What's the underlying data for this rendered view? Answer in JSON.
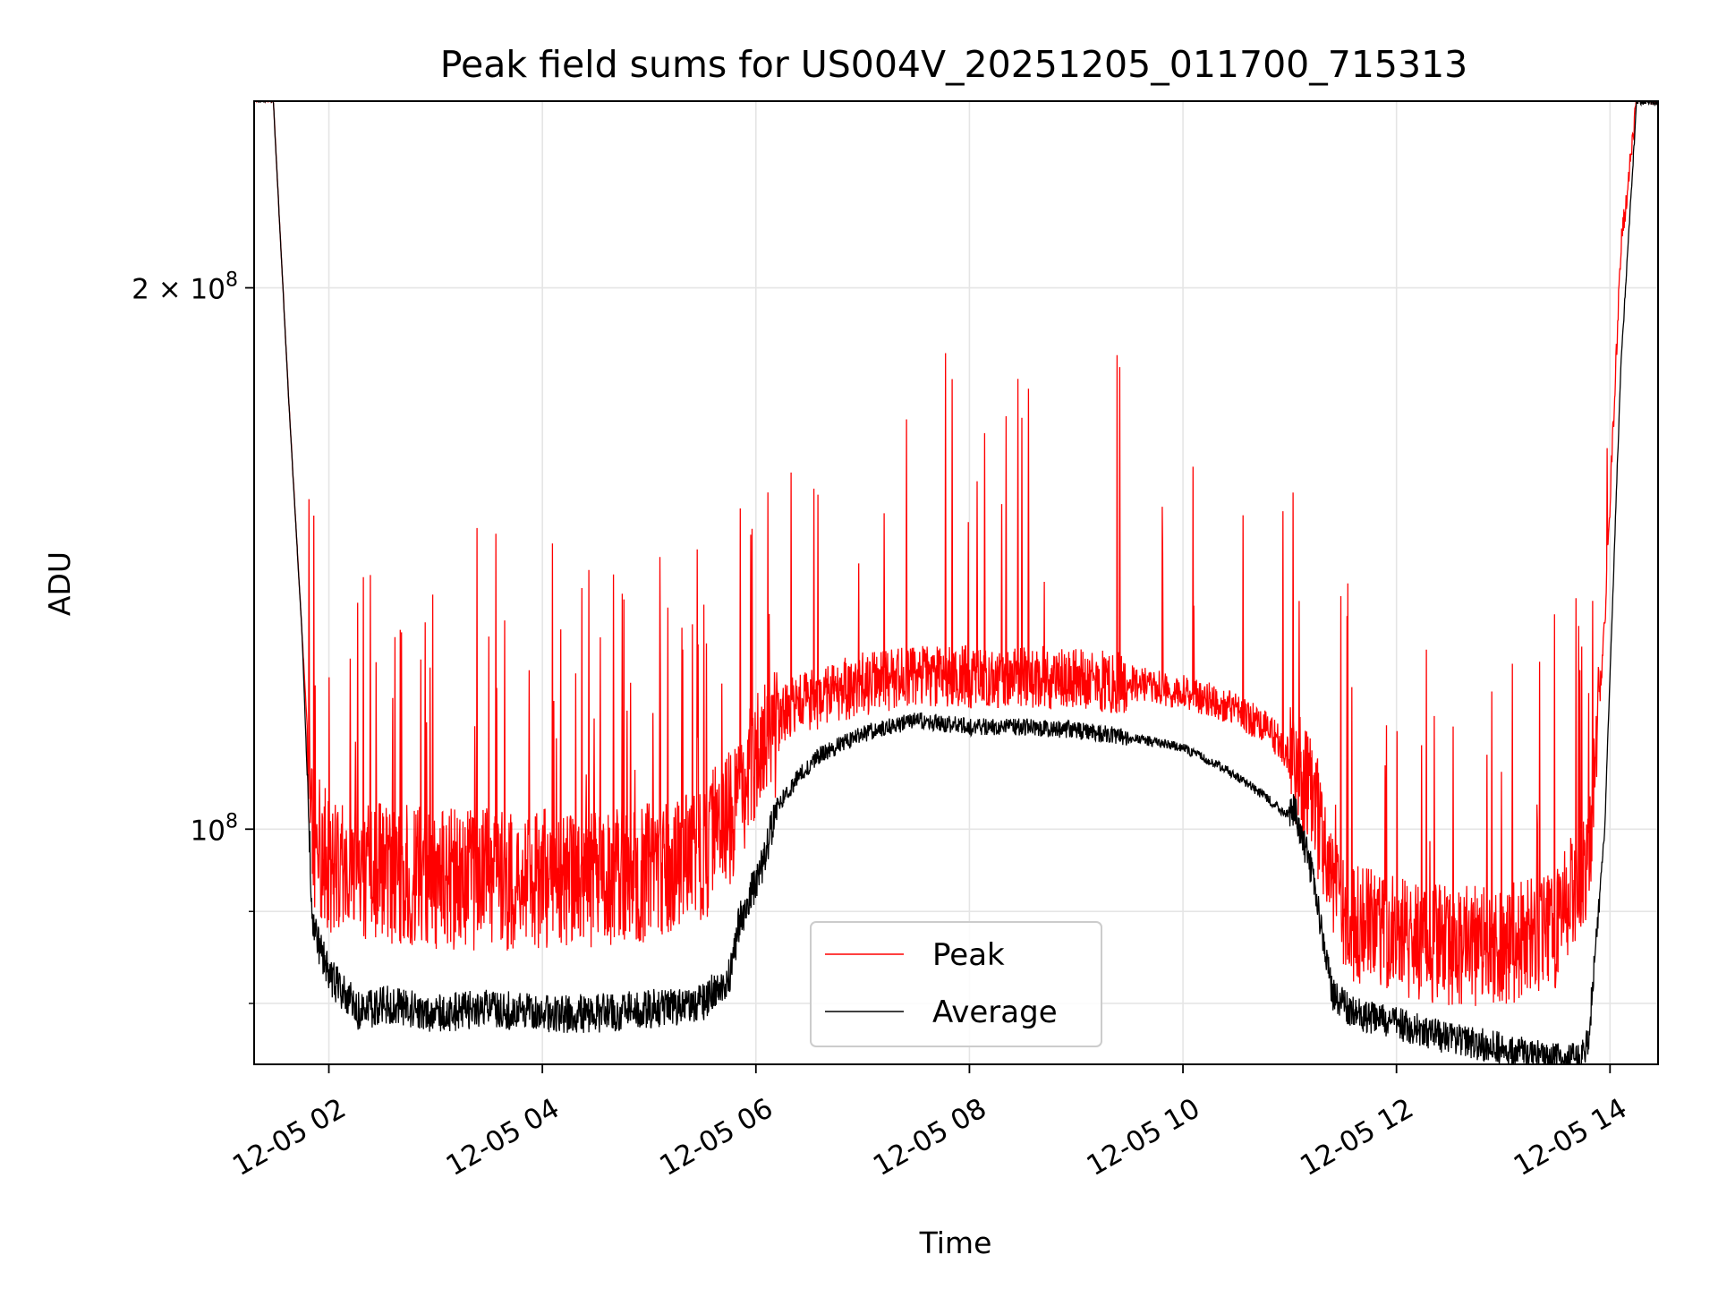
{
  "chart_data": {
    "type": "line",
    "title": "Peak field sums for US004V_20251205_011700_715313",
    "xlabel": "Time",
    "ylabel": "ADU",
    "yscale": "log",
    "grid": true,
    "legend_position": "bottom-center",
    "x_units": "hours since 2025-12-05 00:00",
    "xlim": [
      1.3,
      14.45
    ],
    "ylim": [
      74000000,
      254000000
    ],
    "x_ticks": [
      {
        "value": 2,
        "label": "12-05 02"
      },
      {
        "value": 4,
        "label": "12-05 04"
      },
      {
        "value": 6,
        "label": "12-05 06"
      },
      {
        "value": 8,
        "label": "12-05 08"
      },
      {
        "value": 10,
        "label": "12-05 10"
      },
      {
        "value": 12,
        "label": "12-05 12"
      },
      {
        "value": 14,
        "label": "12-05 14"
      }
    ],
    "y_ticks_major": [
      {
        "value": 100000000,
        "base": "10",
        "exp": "8",
        "mult": ""
      },
      {
        "value": 200000000,
        "base": "10",
        "exp": "8",
        "mult": "2 × "
      }
    ],
    "y_ticks_minor": [
      80000000,
      90000000
    ],
    "series": [
      {
        "name": "Peak",
        "color": "#ff0000",
        "x": [
          1.3,
          1.48,
          1.62,
          1.75,
          1.85,
          2.0,
          2.5,
          3.0,
          3.5,
          4.0,
          4.5,
          5.0,
          5.5,
          5.8,
          6.05,
          6.3,
          6.6,
          7.0,
          7.5,
          8.0,
          8.5,
          9.0,
          9.5,
          10.0,
          10.4,
          10.8,
          11.0,
          11.2,
          11.5,
          12.0,
          12.5,
          13.0,
          13.5,
          13.8,
          13.95,
          14.1,
          14.25,
          14.45
        ],
        "values": [
          254000000,
          254000000,
          175000000,
          128000000,
          100000000,
          97000000,
          96000000,
          95000000,
          95000000,
          95000000,
          95000000,
          96000000,
          98000000,
          104000000,
          113000000,
          117000000,
          119000000,
          121000000,
          122000000,
          122000000,
          122000000,
          122000000,
          121000000,
          119500000,
          117500000,
          114000000,
          110000000,
          106000000,
          90000000,
          88000000,
          87000000,
          87000000,
          89000000,
          98000000,
          130000000,
          210000000,
          254000000,
          254000000
        ]
      },
      {
        "name": "Average",
        "color": "#000000",
        "x": [
          1.3,
          1.48,
          1.62,
          1.75,
          1.85,
          2.0,
          2.3,
          2.5,
          3.0,
          3.5,
          4.0,
          4.5,
          5.0,
          5.5,
          5.75,
          5.85,
          6.05,
          6.2,
          6.4,
          6.6,
          7.0,
          7.5,
          8.0,
          8.5,
          9.0,
          9.5,
          10.0,
          10.4,
          10.8,
          10.95,
          11.05,
          11.2,
          11.4,
          11.6,
          12.0,
          12.5,
          13.0,
          13.3,
          13.5,
          13.72,
          13.8,
          13.95,
          14.1,
          14.25,
          14.45
        ],
        "values": [
          254000000,
          254000000,
          175000000,
          128000000,
          88000000,
          83000000,
          79000000,
          80000000,
          79000000,
          79500000,
          79000000,
          79000000,
          79500000,
          80000000,
          83000000,
          89000000,
          95000000,
          103000000,
          107000000,
          110000000,
          113000000,
          115000000,
          114000000,
          114000000,
          113500000,
          112500000,
          111000000,
          108000000,
          104000000,
          102000000,
          102500000,
          95000000,
          81000000,
          79000000,
          78000000,
          76500000,
          75500000,
          74800000,
          74500000,
          74500000,
          76500000,
          100000000,
          180000000,
          254000000,
          254000000
        ]
      }
    ]
  }
}
